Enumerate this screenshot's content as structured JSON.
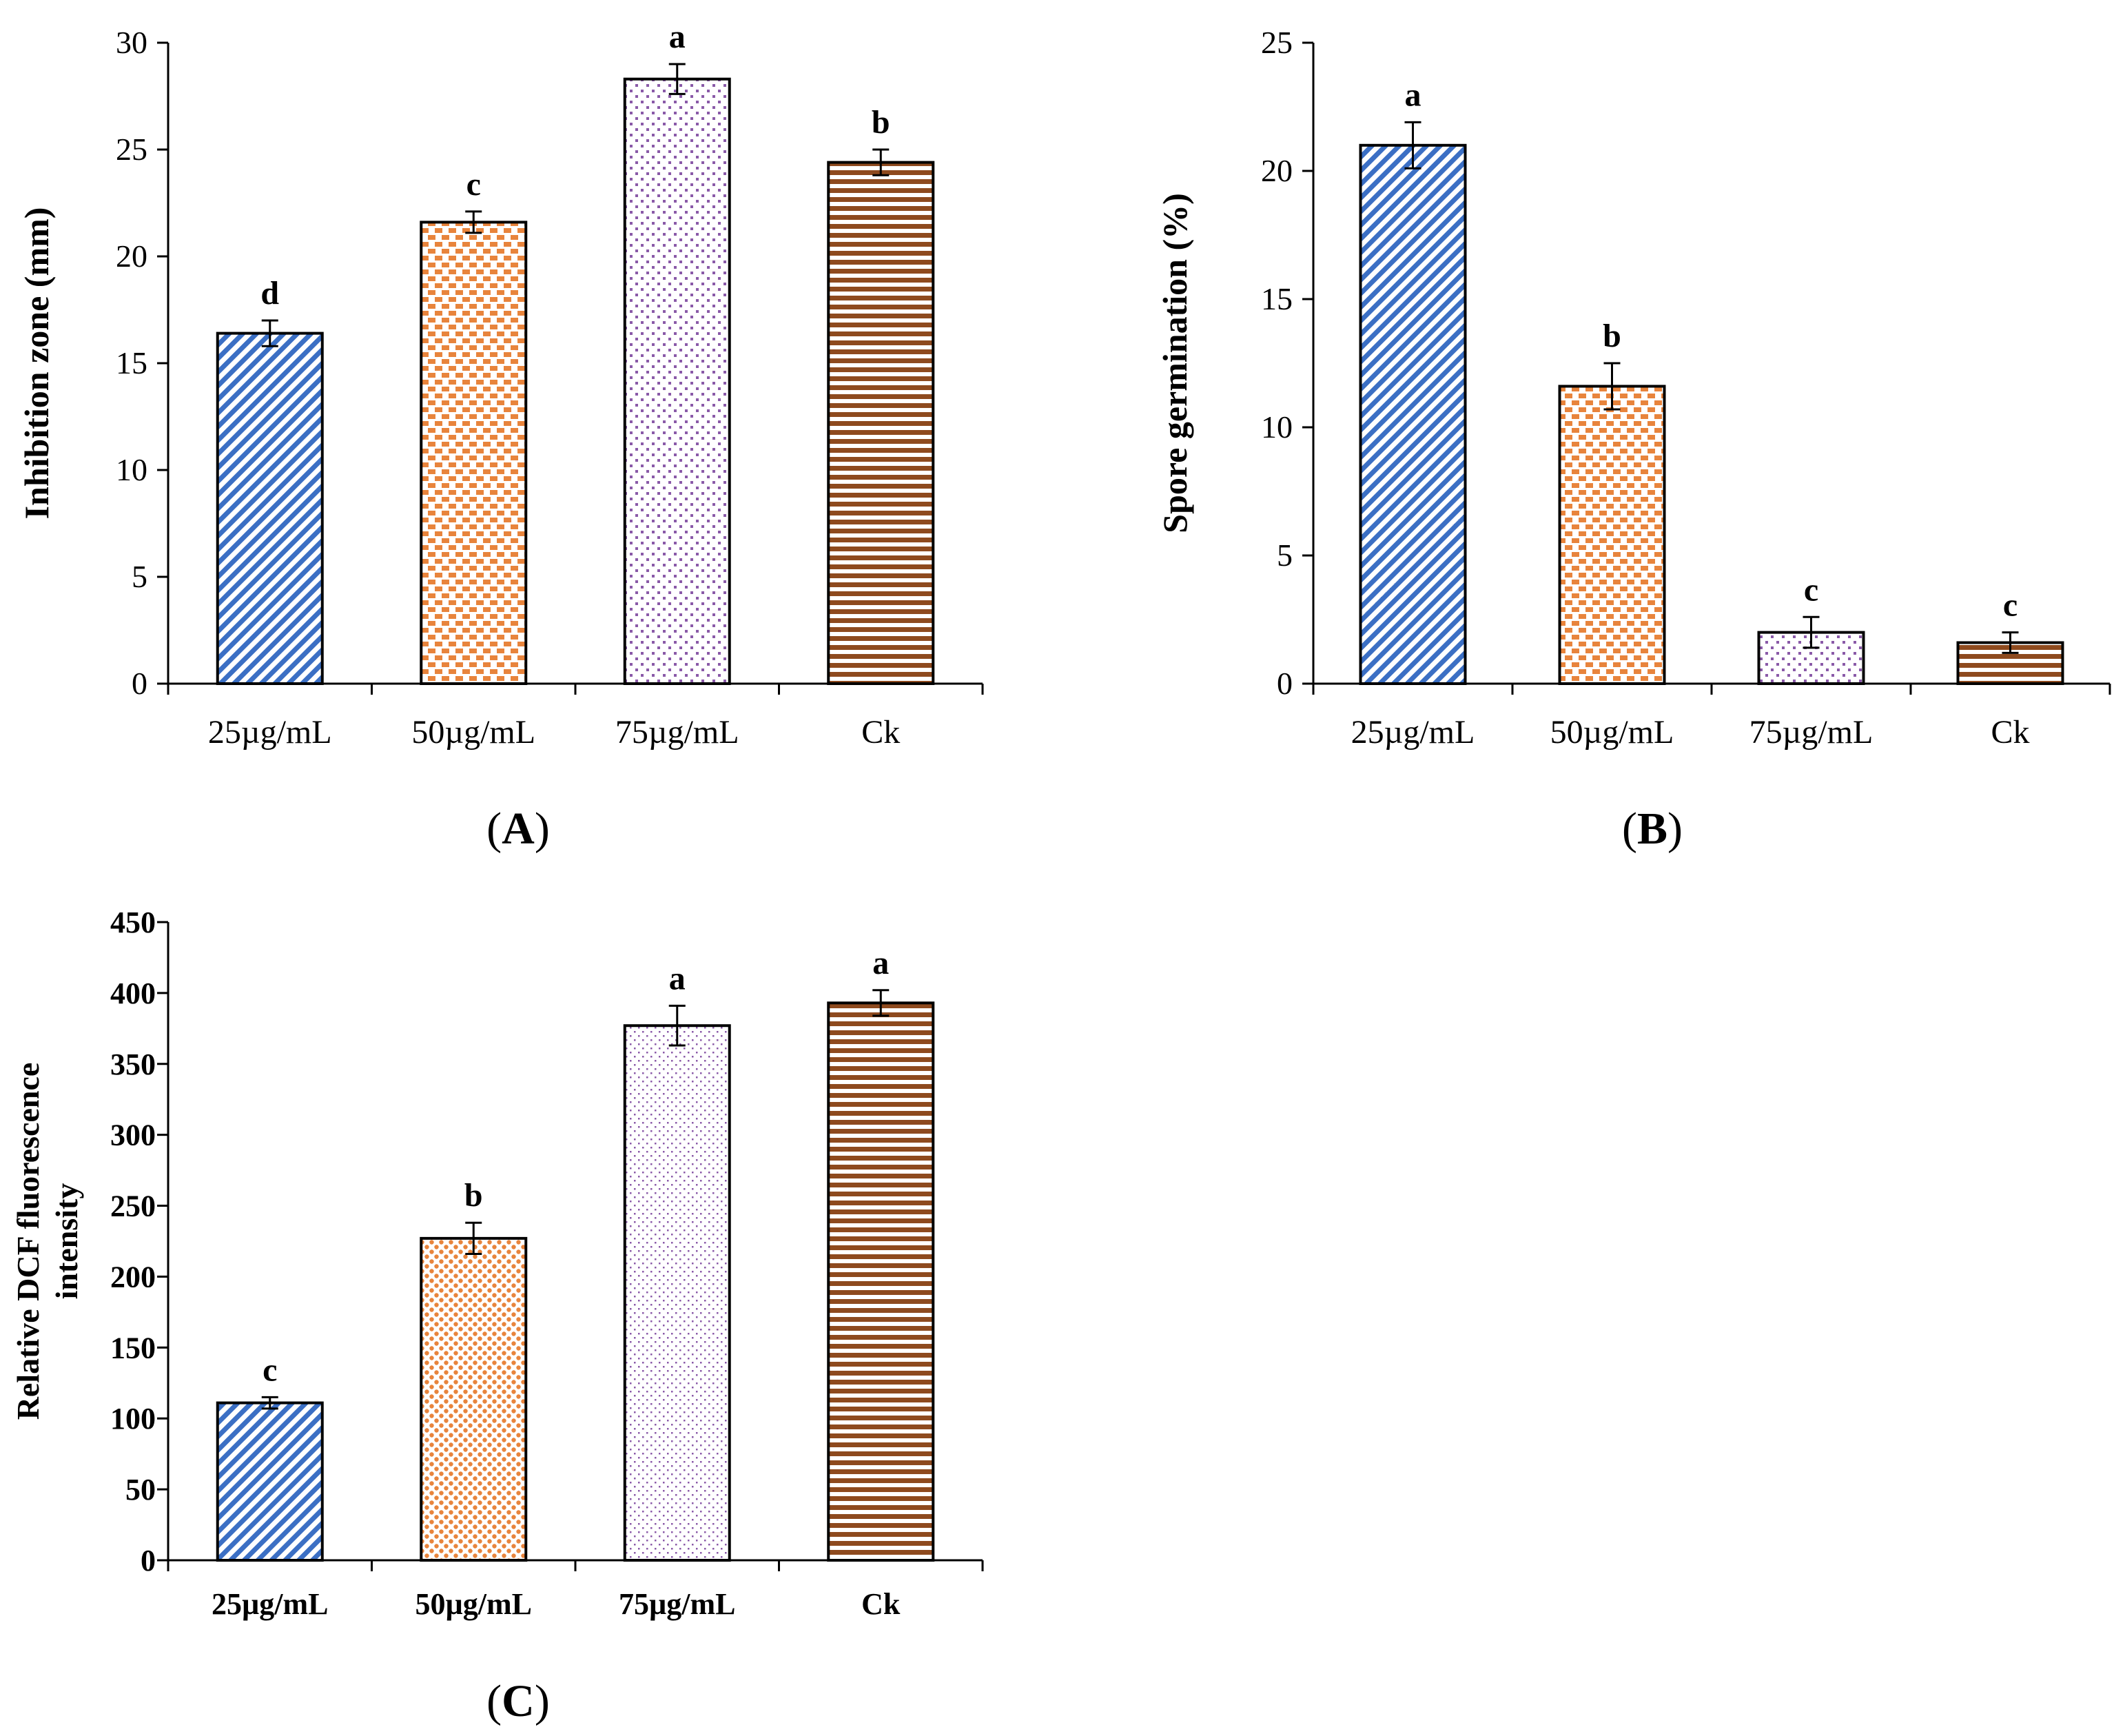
{
  "colors": {
    "blue": "#3b6fc4",
    "orange": "#e8843c",
    "purple": "#8a5aa8",
    "brown": "#8e4a1e"
  },
  "chart_data": [
    {
      "type": "bar",
      "panel": "A",
      "panel_label": "A",
      "title": "",
      "xlabel": "",
      "ylabel": "Inhibition zone (mm)",
      "categories": [
        "25µg/mL",
        "50µg/mL",
        "75µg/mL",
        "Ck"
      ],
      "values": [
        16.4,
        21.6,
        28.3,
        24.4
      ],
      "errors": [
        0.6,
        0.5,
        0.7,
        0.6
      ],
      "significance": [
        "d",
        "c",
        "a",
        "b"
      ],
      "patterns": [
        "diag",
        "brick",
        "dots",
        "hlines"
      ],
      "ylim": [
        0,
        30
      ],
      "yticks": [
        0,
        5,
        10,
        15,
        20,
        25,
        30
      ],
      "ytick_labels": [
        "0",
        "5",
        "10",
        "15",
        "20",
        "25",
        "30"
      ],
      "grid": false
    },
    {
      "type": "bar",
      "panel": "B",
      "panel_label": "B",
      "title": "",
      "xlabel": "",
      "ylabel": "Spore germination (%)",
      "categories": [
        "25µg/mL",
        "50µg/mL",
        "75µg/mL",
        "Ck"
      ],
      "values": [
        21.0,
        11.6,
        2.0,
        1.6
      ],
      "errors": [
        0.9,
        0.9,
        0.6,
        0.4
      ],
      "significance": [
        "a",
        "b",
        "c",
        "c"
      ],
      "patterns": [
        "diag",
        "brick",
        "dots",
        "hlines"
      ],
      "ylim": [
        0,
        25
      ],
      "yticks": [
        0,
        5,
        10,
        15,
        20,
        25
      ],
      "ytick_labels": [
        "0",
        "5",
        "10",
        "15",
        "20",
        "25"
      ],
      "grid": false
    },
    {
      "type": "bar",
      "panel": "C",
      "panel_label": "C",
      "title": "",
      "xlabel": "",
      "ylabel_lines": [
        "Relative DCF fluorescence",
        "intensity"
      ],
      "categories": [
        "25µg/mL",
        "50µg/mL",
        "75µg/mL",
        "Ck"
      ],
      "values": [
        111,
        227,
        377,
        393
      ],
      "errors": [
        4,
        11,
        14,
        9
      ],
      "significance": [
        "c",
        "b",
        "a",
        "a"
      ],
      "patterns": [
        "diag",
        "fine-dots",
        "sparse-dots",
        "hlines"
      ],
      "ylim": [
        0,
        450
      ],
      "yticks": [
        0,
        50,
        100,
        150,
        200,
        250,
        300,
        350,
        400,
        450
      ],
      "ytick_labels": [
        "0",
        "50",
        "100",
        "150",
        "200",
        "250",
        "300",
        "350",
        "400",
        "450"
      ],
      "grid": false
    }
  ]
}
